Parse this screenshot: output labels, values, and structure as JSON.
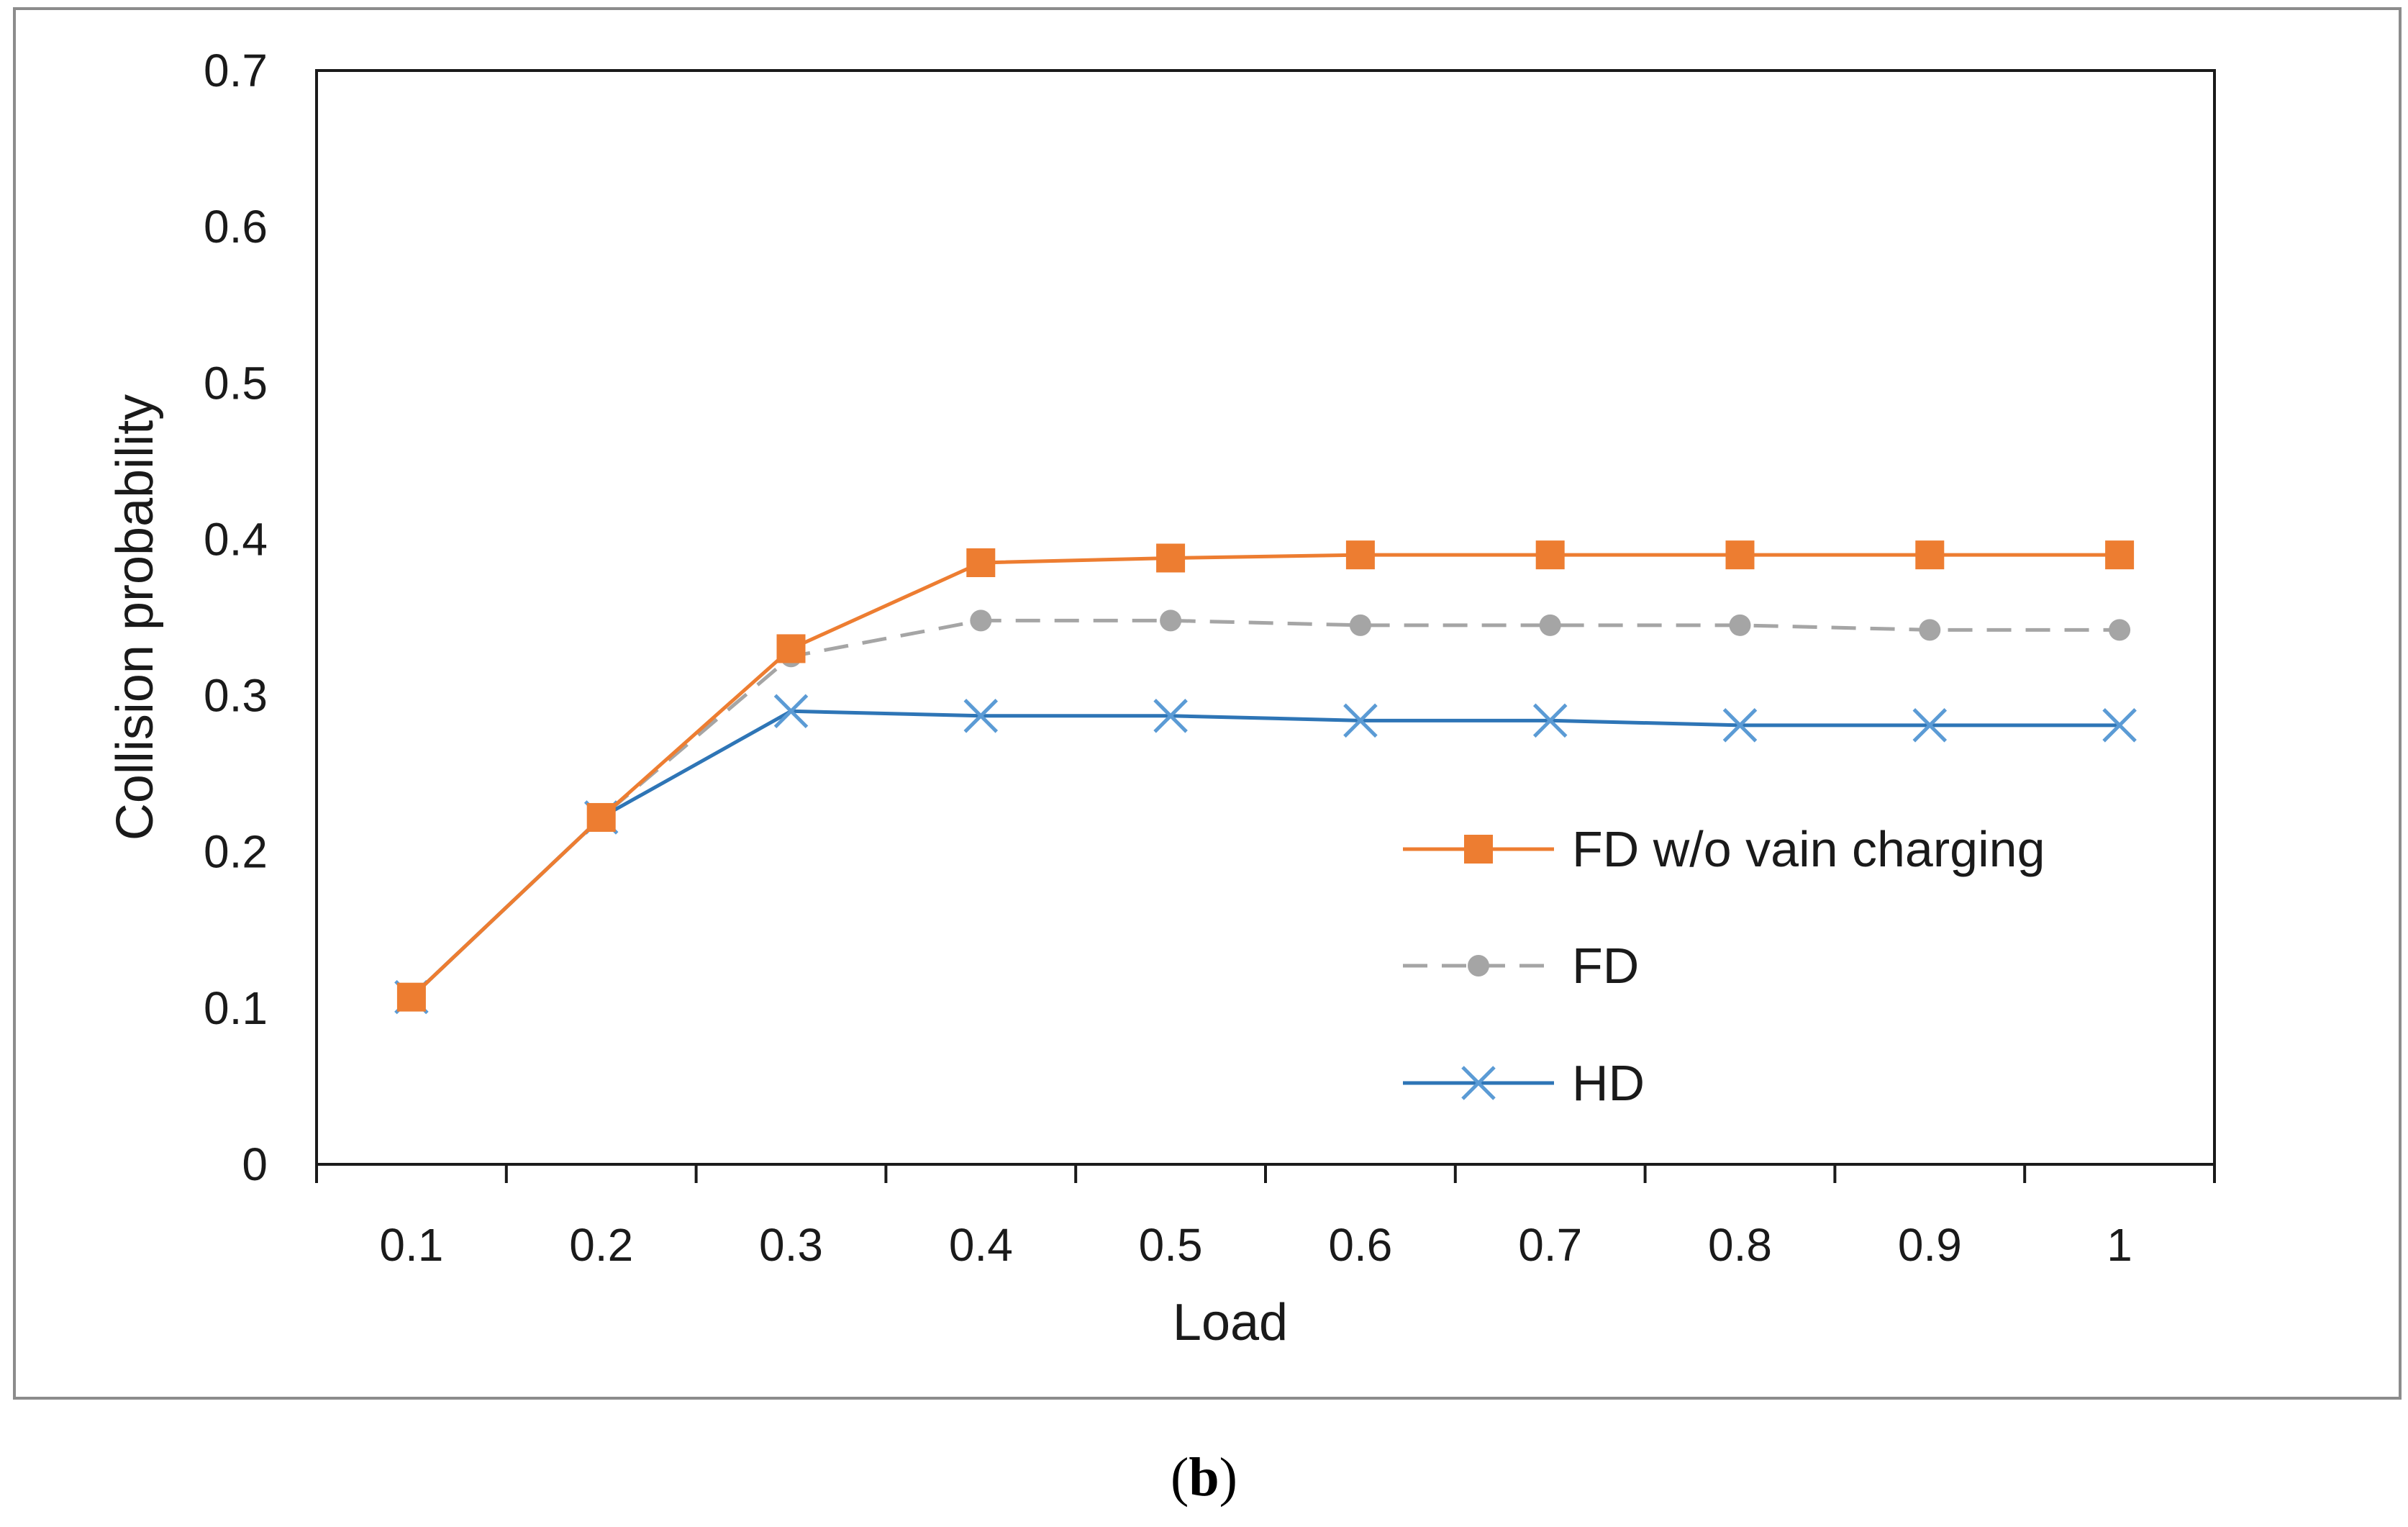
{
  "chart_data": {
    "type": "line",
    "title": "",
    "xlabel": "Load",
    "ylabel": "Collision probability",
    "categories": [
      "0.1",
      "0.2",
      "0.3",
      "0.4",
      "0.5",
      "0.6",
      "0.7",
      "0.8",
      "0.9",
      "1"
    ],
    "ylim": [
      0,
      0.7
    ],
    "yticks": [
      "0",
      "0.1",
      "0.2",
      "0.3",
      "0.4",
      "0.5",
      "0.6",
      "0.7"
    ],
    "grid": false,
    "legend_position": "center-right",
    "series": [
      {
        "name": "FD w/o vain charging",
        "marker": "square",
        "line_style": "solid",
        "color": "#ED7D31",
        "values": [
          0.107,
          0.222,
          0.33,
          0.385,
          0.388,
          0.39,
          0.39,
          0.39,
          0.39,
          0.39
        ]
      },
      {
        "name": "FD",
        "marker": "circle",
        "line_style": "dashed",
        "color": "#A5A5A5",
        "values": [
          0.107,
          0.222,
          0.325,
          0.348,
          0.348,
          0.345,
          0.345,
          0.345,
          0.342,
          0.342
        ]
      },
      {
        "name": "HD",
        "marker": "x",
        "line_style": "solid",
        "color": "#5B9BD5",
        "line_color": "#2E75B6",
        "values": [
          0.107,
          0.222,
          0.29,
          0.287,
          0.287,
          0.284,
          0.284,
          0.281,
          0.281,
          0.281
        ]
      }
    ]
  },
  "caption": {
    "open": "(",
    "label": "b",
    "close": ")"
  }
}
